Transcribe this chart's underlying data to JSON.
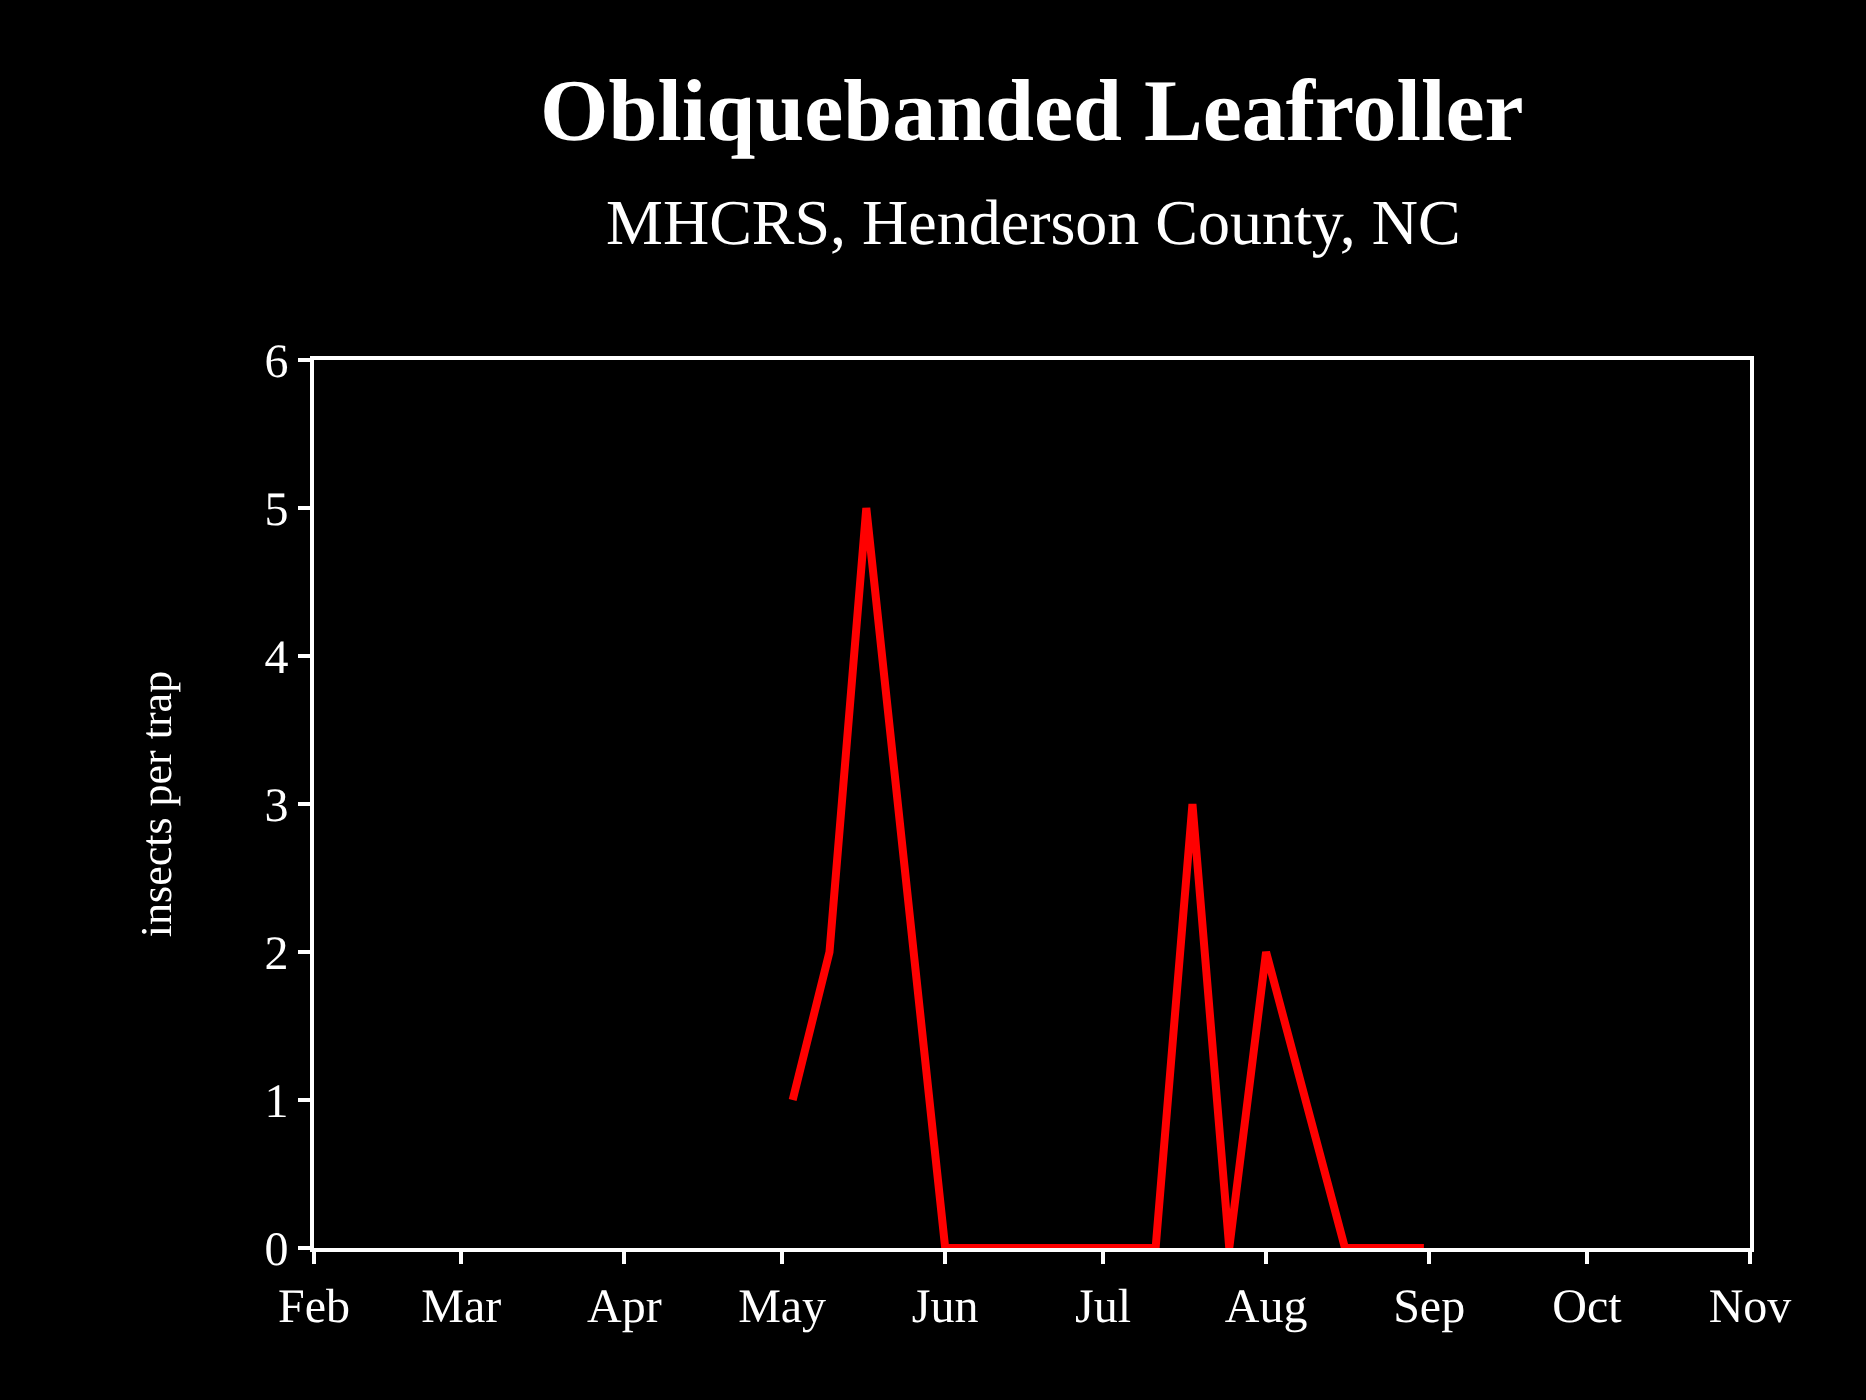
{
  "chart_data": {
    "type": "line",
    "title": "Obliquebanded Leafroller",
    "subtitle": "MHCRS, Henderson County, NC",
    "ylabel": "insects per trap",
    "x": [
      "--05-03",
      "--05-10",
      "--05-17",
      "--06-01",
      "--07-11",
      "--07-18",
      "--07-25",
      "--08-01",
      "--08-16",
      "--08-31"
    ],
    "series": [
      {
        "color": "#ff0000",
        "values": [
          1,
          2,
          5,
          0,
          0,
          3,
          0,
          2,
          0,
          0
        ]
      }
    ],
    "xlim": [
      "--02-01",
      "--11-01"
    ],
    "xticks": [
      {
        "value": "--02-01",
        "label": "Feb"
      },
      {
        "value": "--03-01",
        "label": "Mar"
      },
      {
        "value": "--04-01",
        "label": "Apr"
      },
      {
        "value": "--05-01",
        "label": "May"
      },
      {
        "value": "--06-01",
        "label": "Jun"
      },
      {
        "value": "--07-01",
        "label": "Jul"
      },
      {
        "value": "--08-01",
        "label": "Aug"
      },
      {
        "value": "--09-01",
        "label": "Sep"
      },
      {
        "value": "--10-01",
        "label": "Oct"
      },
      {
        "value": "--11-01",
        "label": "Nov"
      }
    ],
    "ylim": [
      0,
      6
    ],
    "yticks": [
      0,
      1,
      2,
      3,
      4,
      5,
      6
    ],
    "grid": false,
    "marker": "none",
    "line_style": "solid"
  }
}
